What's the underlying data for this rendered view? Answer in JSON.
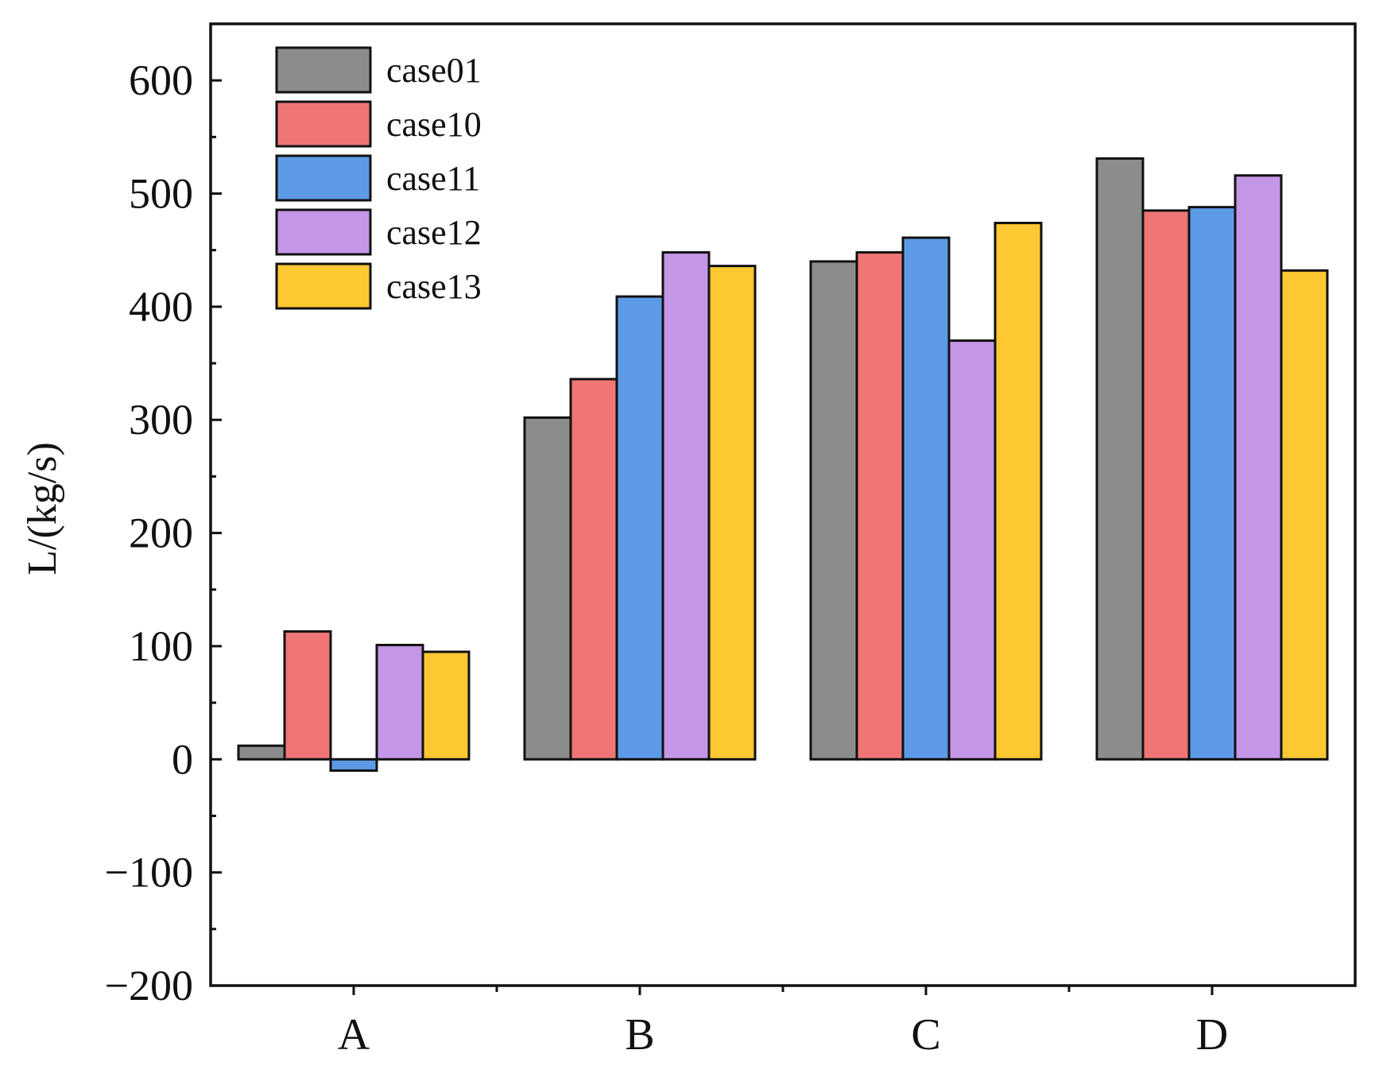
{
  "chart_data": {
    "type": "bar",
    "title": "",
    "xlabel": "",
    "ylabel": "L/(kg/s)",
    "ylim": [
      -200,
      650
    ],
    "yticks": [
      -200,
      -100,
      0,
      100,
      200,
      300,
      400,
      500,
      600
    ],
    "ytick_labels": [
      "−200",
      "−100",
      "0",
      "100",
      "200",
      "300",
      "400",
      "500",
      "600"
    ],
    "categories": [
      "A",
      "B",
      "C",
      "D"
    ],
    "series": [
      {
        "name": "case01",
        "color": "#8c8c8c",
        "values": [
          12,
          302,
          440,
          531
        ]
      },
      {
        "name": "case10",
        "color": "#f07575",
        "values": [
          113,
          336,
          448,
          485
        ]
      },
      {
        "name": "case11",
        "color": "#5c9ae6",
        "values": [
          -10,
          409,
          461,
          488
        ]
      },
      {
        "name": "case12",
        "color": "#c496e6",
        "values": [
          101,
          448,
          370,
          516
        ]
      },
      {
        "name": "case13",
        "color": "#fdc832",
        "values": [
          95,
          436,
          474,
          432
        ]
      }
    ],
    "legend_position": "top-left",
    "grid": false
  }
}
